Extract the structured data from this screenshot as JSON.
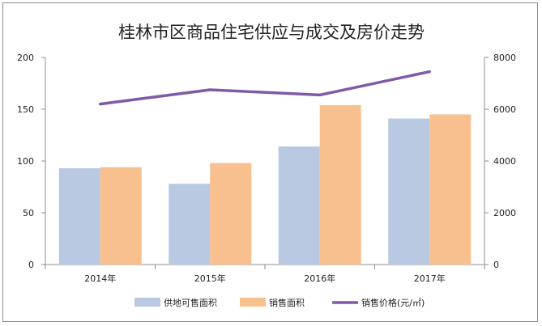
{
  "chart_data": {
    "type": "bar",
    "title": "桂林市区商品住宅供应与成交及房价走势",
    "categories": [
      "2014年",
      "2015年",
      "2016年",
      "2017年"
    ],
    "series": [
      {
        "name": "供地可售面积",
        "type": "bar",
        "axis": "left",
        "color": "#b8c9e1",
        "values": [
          93,
          78,
          114,
          141
        ]
      },
      {
        "name": "销售面积",
        "type": "bar",
        "axis": "left",
        "color": "#f8c08f",
        "values": [
          94,
          98,
          154,
          145
        ]
      },
      {
        "name": "销售价格(元/㎡)",
        "type": "line",
        "axis": "right",
        "color": "#7f5ba6",
        "values": [
          6200,
          6750,
          6550,
          7450
        ]
      }
    ],
    "y_left": {
      "min": 0,
      "max": 200,
      "ticks": [
        "0",
        "50",
        "100",
        "150",
        "200"
      ]
    },
    "y_right": {
      "min": 0,
      "max": 8000,
      "ticks": [
        "0",
        "2000",
        "4000",
        "6000",
        "8000"
      ]
    },
    "grid": false,
    "legend_position": "bottom"
  }
}
